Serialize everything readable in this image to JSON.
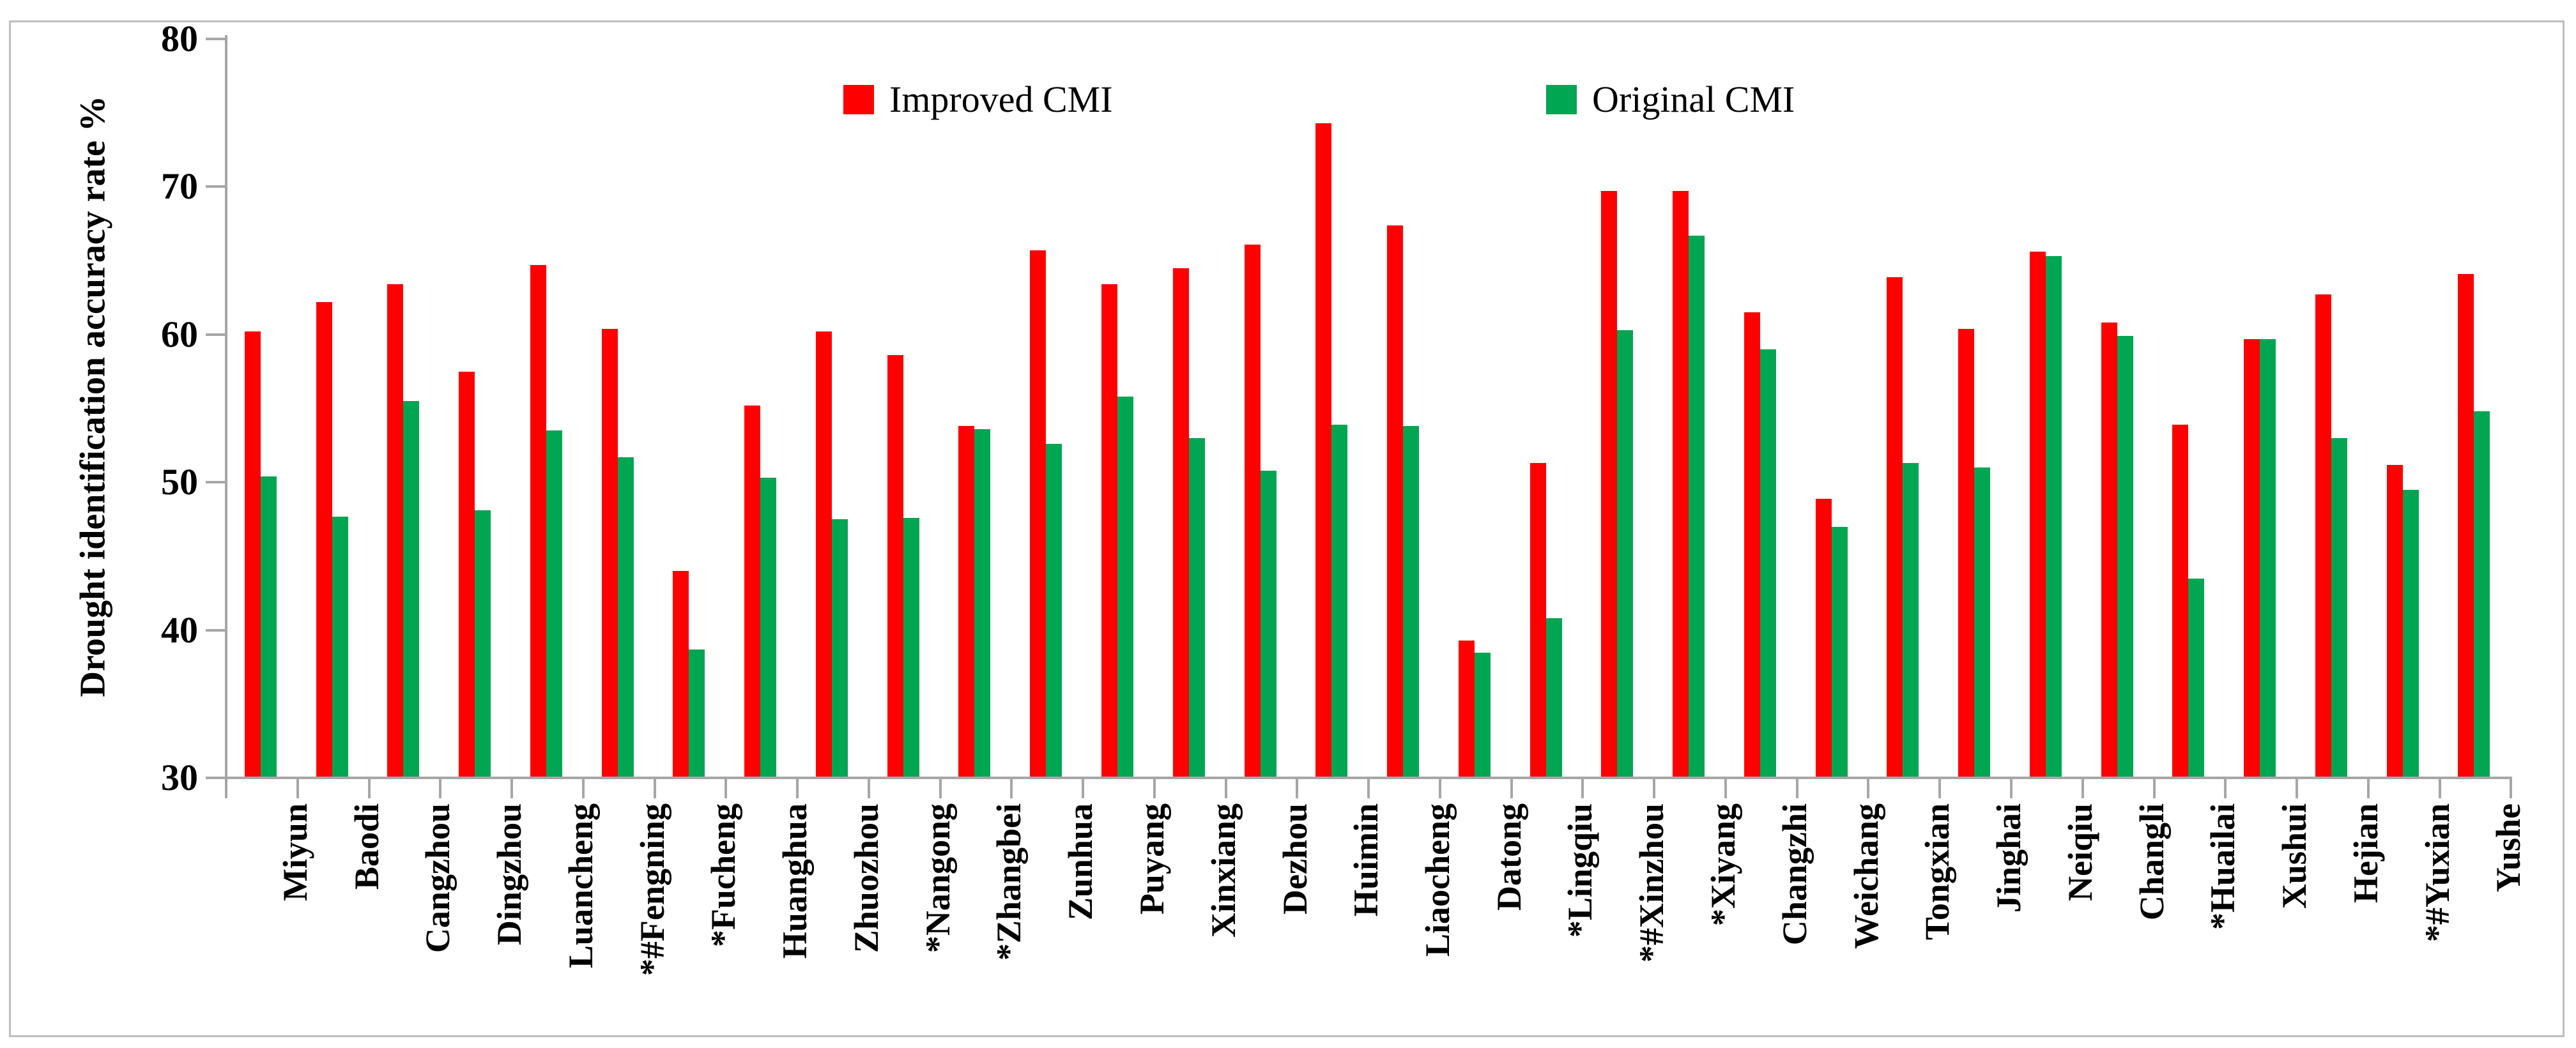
{
  "figure": {
    "kind": "statistical bar chart from a scientific figure",
    "background": "#ffffff",
    "frame_color": "#bdbdbd",
    "axis_color": "#a6a6a6"
  },
  "legend": {
    "improved_label": "Improved CMI",
    "original_label": "Original CMI"
  },
  "chart_data": {
    "type": "bar",
    "title": "",
    "xlabel": "",
    "ylabel": "Drought identification accuracy  rate %",
    "ylim": [
      30,
      80
    ],
    "yticks": [
      30,
      40,
      50,
      60,
      70,
      80
    ],
    "grid": false,
    "legend_position": "top-center-inside",
    "categories": [
      "Miyun",
      "Baodi",
      "Cangzhou",
      "Dingzhou",
      "Luancheng",
      "*#Fengning",
      "*Fucheng",
      "Huanghua",
      "Zhuozhou",
      "*Nangong",
      "*Zhangbei",
      "Zunhua",
      "Puyang",
      "Xinxiang",
      "Dezhou",
      "Huimin",
      "Liaocheng",
      "Datong",
      "*Lingqiu",
      "*#Xinzhou",
      "*Xiyang",
      "Changzhi",
      "Weichang",
      "Tongxian",
      "Jinghai",
      "Neiqiu",
      "Changli",
      "*Huailai",
      "Xushui",
      "Hejian",
      "*#Yuxian",
      "Yushe"
    ],
    "series": [
      {
        "name": "Improved CMI",
        "color": "#fe0000",
        "values": [
          60.1,
          62.1,
          63.3,
          57.4,
          64.6,
          60.3,
          43.9,
          55.1,
          60.1,
          58.5,
          53.7,
          65.6,
          63.3,
          64.4,
          66.0,
          74.2,
          67.3,
          39.2,
          51.2,
          69.6,
          69.6,
          61.4,
          48.8,
          63.8,
          60.3,
          65.5,
          60.7,
          53.8,
          59.6,
          62.6,
          51.1,
          64.0
        ]
      },
      {
        "name": "Original CMI",
        "color": "#00a651",
        "values": [
          50.3,
          47.6,
          55.4,
          48.0,
          53.4,
          51.6,
          38.6,
          50.2,
          47.4,
          47.5,
          53.5,
          52.5,
          55.7,
          52.9,
          50.7,
          53.8,
          53.7,
          38.4,
          40.7,
          60.2,
          66.6,
          58.9,
          46.9,
          51.2,
          50.9,
          65.2,
          59.8,
          43.4,
          59.6,
          52.9,
          49.4,
          54.7
        ]
      }
    ]
  }
}
